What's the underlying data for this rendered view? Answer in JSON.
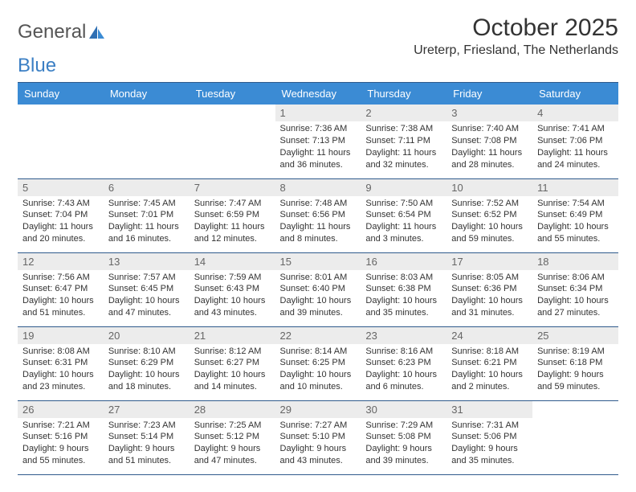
{
  "logo": {
    "text1": "General",
    "text2": "Blue"
  },
  "title": "October 2025",
  "location": "Ureterp, Friesland, The Netherlands",
  "colors": {
    "header_bg": "#3b8bd4",
    "header_text": "#ffffff",
    "border": "#2f5a8c",
    "daynum_bg": "#ececec",
    "daynum_text": "#666666",
    "body_text": "#333333",
    "logo_accent": "#3b7fc4"
  },
  "fonts": {
    "title_size": 30,
    "location_size": 16,
    "weekday_size": 13,
    "daynum_size": 13,
    "info_size": 11
  },
  "weekdays": [
    "Sunday",
    "Monday",
    "Tuesday",
    "Wednesday",
    "Thursday",
    "Friday",
    "Saturday"
  ],
  "weeks": [
    [
      {
        "empty": true
      },
      {
        "empty": true
      },
      {
        "empty": true
      },
      {
        "day": "1",
        "sunrise": "7:36 AM",
        "sunset": "7:13 PM",
        "daylight": "11 hours and 36 minutes."
      },
      {
        "day": "2",
        "sunrise": "7:38 AM",
        "sunset": "7:11 PM",
        "daylight": "11 hours and 32 minutes."
      },
      {
        "day": "3",
        "sunrise": "7:40 AM",
        "sunset": "7:08 PM",
        "daylight": "11 hours and 28 minutes."
      },
      {
        "day": "4",
        "sunrise": "7:41 AM",
        "sunset": "7:06 PM",
        "daylight": "11 hours and 24 minutes."
      }
    ],
    [
      {
        "day": "5",
        "sunrise": "7:43 AM",
        "sunset": "7:04 PM",
        "daylight": "11 hours and 20 minutes."
      },
      {
        "day": "6",
        "sunrise": "7:45 AM",
        "sunset": "7:01 PM",
        "daylight": "11 hours and 16 minutes."
      },
      {
        "day": "7",
        "sunrise": "7:47 AM",
        "sunset": "6:59 PM",
        "daylight": "11 hours and 12 minutes."
      },
      {
        "day": "8",
        "sunrise": "7:48 AM",
        "sunset": "6:56 PM",
        "daylight": "11 hours and 8 minutes."
      },
      {
        "day": "9",
        "sunrise": "7:50 AM",
        "sunset": "6:54 PM",
        "daylight": "11 hours and 3 minutes."
      },
      {
        "day": "10",
        "sunrise": "7:52 AM",
        "sunset": "6:52 PM",
        "daylight": "10 hours and 59 minutes."
      },
      {
        "day": "11",
        "sunrise": "7:54 AM",
        "sunset": "6:49 PM",
        "daylight": "10 hours and 55 minutes."
      }
    ],
    [
      {
        "day": "12",
        "sunrise": "7:56 AM",
        "sunset": "6:47 PM",
        "daylight": "10 hours and 51 minutes."
      },
      {
        "day": "13",
        "sunrise": "7:57 AM",
        "sunset": "6:45 PM",
        "daylight": "10 hours and 47 minutes."
      },
      {
        "day": "14",
        "sunrise": "7:59 AM",
        "sunset": "6:43 PM",
        "daylight": "10 hours and 43 minutes."
      },
      {
        "day": "15",
        "sunrise": "8:01 AM",
        "sunset": "6:40 PM",
        "daylight": "10 hours and 39 minutes."
      },
      {
        "day": "16",
        "sunrise": "8:03 AM",
        "sunset": "6:38 PM",
        "daylight": "10 hours and 35 minutes."
      },
      {
        "day": "17",
        "sunrise": "8:05 AM",
        "sunset": "6:36 PM",
        "daylight": "10 hours and 31 minutes."
      },
      {
        "day": "18",
        "sunrise": "8:06 AM",
        "sunset": "6:34 PM",
        "daylight": "10 hours and 27 minutes."
      }
    ],
    [
      {
        "day": "19",
        "sunrise": "8:08 AM",
        "sunset": "6:31 PM",
        "daylight": "10 hours and 23 minutes."
      },
      {
        "day": "20",
        "sunrise": "8:10 AM",
        "sunset": "6:29 PM",
        "daylight": "10 hours and 18 minutes."
      },
      {
        "day": "21",
        "sunrise": "8:12 AM",
        "sunset": "6:27 PM",
        "daylight": "10 hours and 14 minutes."
      },
      {
        "day": "22",
        "sunrise": "8:14 AM",
        "sunset": "6:25 PM",
        "daylight": "10 hours and 10 minutes."
      },
      {
        "day": "23",
        "sunrise": "8:16 AM",
        "sunset": "6:23 PM",
        "daylight": "10 hours and 6 minutes."
      },
      {
        "day": "24",
        "sunrise": "8:18 AM",
        "sunset": "6:21 PM",
        "daylight": "10 hours and 2 minutes."
      },
      {
        "day": "25",
        "sunrise": "8:19 AM",
        "sunset": "6:18 PM",
        "daylight": "9 hours and 59 minutes."
      }
    ],
    [
      {
        "day": "26",
        "sunrise": "7:21 AM",
        "sunset": "5:16 PM",
        "daylight": "9 hours and 55 minutes."
      },
      {
        "day": "27",
        "sunrise": "7:23 AM",
        "sunset": "5:14 PM",
        "daylight": "9 hours and 51 minutes."
      },
      {
        "day": "28",
        "sunrise": "7:25 AM",
        "sunset": "5:12 PM",
        "daylight": "9 hours and 47 minutes."
      },
      {
        "day": "29",
        "sunrise": "7:27 AM",
        "sunset": "5:10 PM",
        "daylight": "9 hours and 43 minutes."
      },
      {
        "day": "30",
        "sunrise": "7:29 AM",
        "sunset": "5:08 PM",
        "daylight": "9 hours and 39 minutes."
      },
      {
        "day": "31",
        "sunrise": "7:31 AM",
        "sunset": "5:06 PM",
        "daylight": "9 hours and 35 minutes."
      },
      {
        "empty": true
      }
    ]
  ],
  "labels": {
    "sunrise": "Sunrise:",
    "sunset": "Sunset:",
    "daylight": "Daylight:"
  }
}
